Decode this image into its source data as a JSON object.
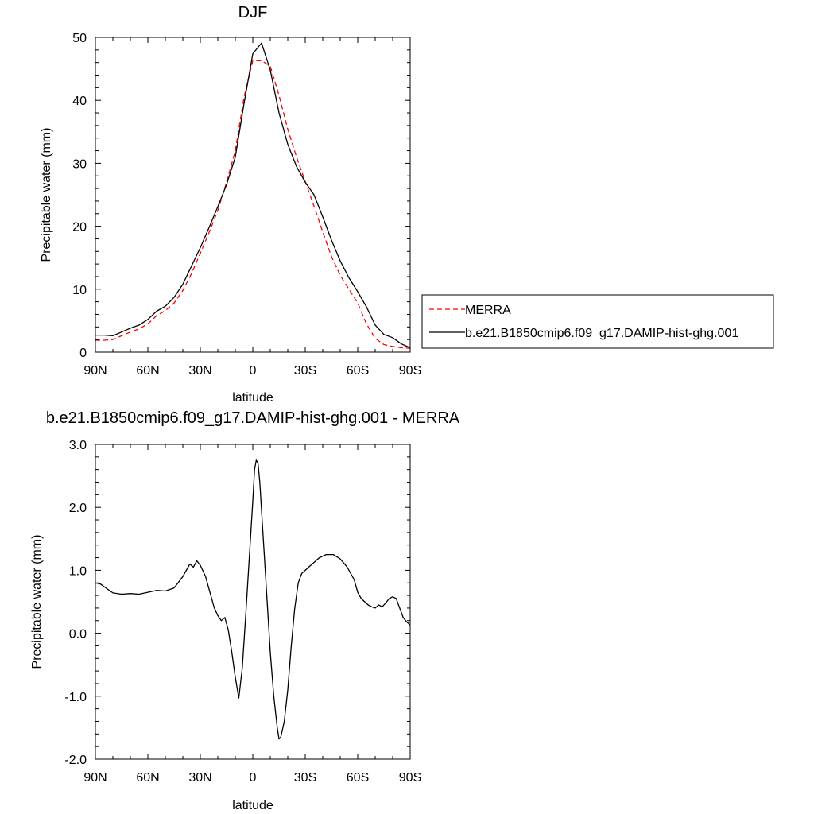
{
  "chart_data": [
    {
      "type": "line",
      "title": "DJF",
      "xlabel": "latitude",
      "ylabel": "Precipitable water (mm)",
      "xlim": [
        90,
        -90
      ],
      "ylim": [
        0,
        50
      ],
      "x_ticks": [
        90,
        60,
        30,
        0,
        -30,
        -60,
        -90
      ],
      "x_tick_labels": [
        "90N",
        "60N",
        "30N",
        "0",
        "30S",
        "60S",
        "90S"
      ],
      "y_ticks": [
        0,
        10,
        20,
        30,
        40,
        50
      ],
      "y_tick_labels": [
        "0",
        "10",
        "20",
        "30",
        "40",
        "50"
      ],
      "legend_position": "right, outside plot",
      "series": [
        {
          "name": "MERRA",
          "color": "#ff0000",
          "dash": "dashed",
          "x": [
            90,
            85,
            80,
            75,
            70,
            65,
            60,
            55,
            50,
            45,
            40,
            35,
            30,
            25,
            20,
            15,
            10,
            5,
            0,
            -5,
            -10,
            -15,
            -20,
            -25,
            -30,
            -35,
            -40,
            -45,
            -50,
            -55,
            -60,
            -65,
            -70,
            -75,
            -80,
            -85,
            -90
          ],
          "y": [
            1.9,
            1.9,
            2.0,
            2.6,
            3.2,
            3.7,
            4.5,
            5.8,
            6.6,
            7.8,
            9.8,
            12.5,
            15.7,
            19.0,
            22.5,
            27.0,
            32.0,
            40.5,
            46.3,
            46.3,
            45.4,
            40.8,
            35.4,
            31.0,
            27.1,
            23.2,
            19.1,
            15.2,
            12.2,
            10.0,
            7.8,
            4.5,
            2.2,
            1.2,
            0.9,
            0.7,
            0.6
          ]
        },
        {
          "name": "b.e21.B1850cmip6.f09_g17.DAMIP-hist-ghg.001",
          "color": "#000000",
          "dash": "solid",
          "x": [
            90,
            85,
            80,
            75,
            70,
            65,
            60,
            55,
            50,
            45,
            40,
            35,
            30,
            25,
            20,
            15,
            10,
            5,
            0,
            -5,
            -10,
            -15,
            -20,
            -25,
            -30,
            -35,
            -40,
            -45,
            -50,
            -55,
            -60,
            -65,
            -70,
            -75,
            -80,
            -85,
            -90
          ],
          "y": [
            2.7,
            2.7,
            2.6,
            3.2,
            3.8,
            4.3,
            5.2,
            6.5,
            7.3,
            8.7,
            10.8,
            13.7,
            16.6,
            19.8,
            23.1,
            26.6,
            31.0,
            39.5,
            47.4,
            49.1,
            44.8,
            38.0,
            33.0,
            29.5,
            27.0,
            25.0,
            21.5,
            17.8,
            14.5,
            11.8,
            9.6,
            7.2,
            4.3,
            2.8,
            2.3,
            1.3,
            0.7
          ]
        }
      ]
    },
    {
      "type": "line",
      "title": "b.e21.B1850cmip6.f09_g17.DAMIP-hist-ghg.001 - MERRA",
      "xlabel": "latitude",
      "ylabel": "Precipitable water (mm)",
      "xlim": [
        90,
        -90
      ],
      "ylim": [
        -2.0,
        3.0
      ],
      "x_ticks": [
        90,
        60,
        30,
        0,
        -30,
        -60,
        -90
      ],
      "x_tick_labels": [
        "90N",
        "60N",
        "30N",
        "0",
        "30S",
        "60S",
        "90S"
      ],
      "y_ticks": [
        -2.0,
        -1.0,
        0.0,
        1.0,
        2.0,
        3.0
      ],
      "y_tick_labels": [
        "-2.0",
        "-1.0",
        "0.0",
        "1.0",
        "2.0",
        "3.0"
      ],
      "series": [
        {
          "color": "#000000",
          "dash": "solid",
          "x": [
            90,
            87,
            84,
            80,
            75,
            70,
            65,
            60,
            55,
            50,
            45,
            40,
            36,
            34,
            32,
            30,
            27,
            24,
            22,
            20,
            18,
            16,
            14,
            12,
            10,
            8,
            6,
            4,
            2,
            0,
            -1,
            -2,
            -3,
            -4,
            -6,
            -8,
            -10,
            -12,
            -14,
            -15,
            -16,
            -18,
            -20,
            -22,
            -24,
            -26,
            -28,
            -30,
            -32,
            -34,
            -38,
            -42,
            -46,
            -50,
            -54,
            -58,
            -60,
            -62,
            -64,
            -66,
            -68,
            -70,
            -72,
            -74,
            -76,
            -78,
            -80,
            -82,
            -84,
            -86,
            -88,
            -90
          ],
          "y": [
            0.8,
            0.78,
            0.72,
            0.64,
            0.62,
            0.63,
            0.62,
            0.65,
            0.68,
            0.67,
            0.72,
            0.9,
            1.1,
            1.05,
            1.15,
            1.08,
            0.9,
            0.6,
            0.4,
            0.28,
            0.2,
            0.25,
            0.05,
            -0.3,
            -0.7,
            -1.03,
            -0.55,
            0.3,
            1.2,
            2.1,
            2.6,
            2.75,
            2.7,
            2.4,
            1.5,
            0.6,
            -0.3,
            -1.0,
            -1.5,
            -1.68,
            -1.65,
            -1.4,
            -0.9,
            -0.2,
            0.4,
            0.8,
            0.95,
            1.0,
            1.05,
            1.1,
            1.2,
            1.25,
            1.25,
            1.18,
            1.05,
            0.85,
            0.65,
            0.55,
            0.5,
            0.45,
            0.42,
            0.4,
            0.45,
            0.42,
            0.48,
            0.55,
            0.58,
            0.55,
            0.4,
            0.25,
            0.18,
            0.13
          ]
        }
      ]
    }
  ]
}
